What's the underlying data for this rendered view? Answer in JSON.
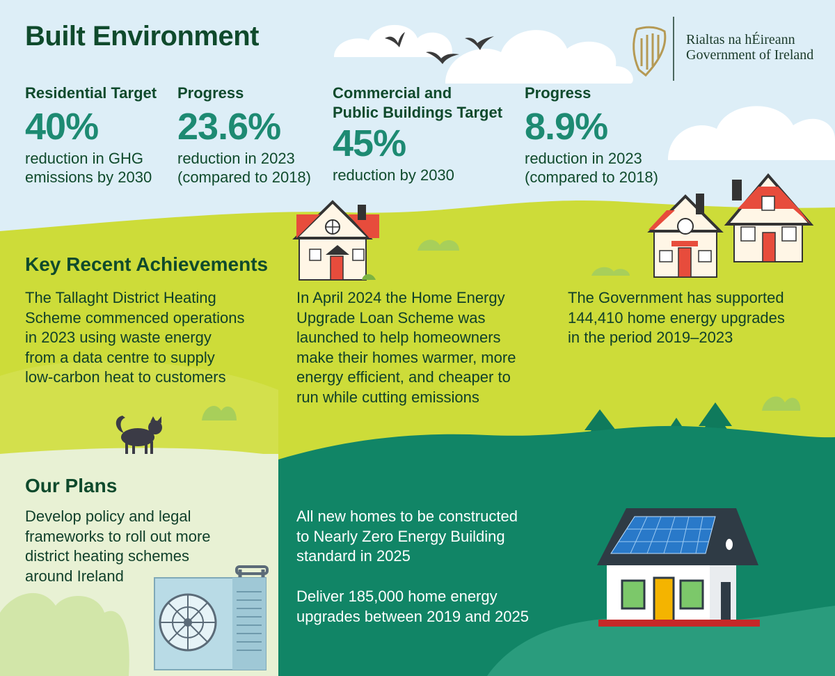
{
  "title": "Built Environment",
  "government": {
    "line1": "Rialtas na hÉireann",
    "line2": "Government of Ireland"
  },
  "targets": [
    {
      "label": "Residential Target",
      "value": "40%",
      "desc1": "reduction in GHG",
      "desc2": "emissions by 2030"
    },
    {
      "label": "Progress",
      "value": "23.6%",
      "desc1": "reduction in 2023",
      "desc2": "(compared to 2018)"
    },
    {
      "label1": "Commercial and",
      "label2": "Public Buildings Target",
      "value": "45%",
      "desc1": "reduction by 2030"
    },
    {
      "label": "Progress",
      "value": "8.9%",
      "desc1": "reduction in 2023",
      "desc2": "(compared to 2018)"
    }
  ],
  "achievements": {
    "heading": "Key Recent Achievements",
    "items": [
      [
        "The Tallaght District Heating",
        "Scheme commenced operations",
        "in 2023 using waste energy",
        "from a data centre to supply",
        "low-carbon heat to customers"
      ],
      [
        "In April 2024 the Home Energy",
        "Upgrade Loan Scheme was",
        "launched to help homeowners",
        "make their homes warmer, more",
        "energy efficient, and cheaper to",
        "run while cutting emissions"
      ],
      [
        "The Government has supported",
        "144,410 home energy upgrades",
        "in the period 2019–2023"
      ]
    ]
  },
  "plans": {
    "heading": "Our Plans",
    "left": [
      "Develop policy and legal",
      "frameworks to roll out more",
      "district heating schemes",
      "around Ireland"
    ],
    "right1": [
      "All new homes to be constructed",
      "to Nearly Zero Energy Building",
      "standard in 2025"
    ],
    "right2": [
      "Deliver 185,000 home energy",
      "upgrades between 2019 and 2025"
    ]
  },
  "colors": {
    "sky": "#ddeef7",
    "lime": "#cddc39",
    "darkgreen": "#0f4a2c",
    "teal": "#1d8a72",
    "panelgreen": "#118566"
  },
  "icons": [
    "harp-icon",
    "bird-icon",
    "cloud-icon",
    "house-icon",
    "cat-icon",
    "tree-icon",
    "heat-pump-icon",
    "solar-house-icon"
  ]
}
